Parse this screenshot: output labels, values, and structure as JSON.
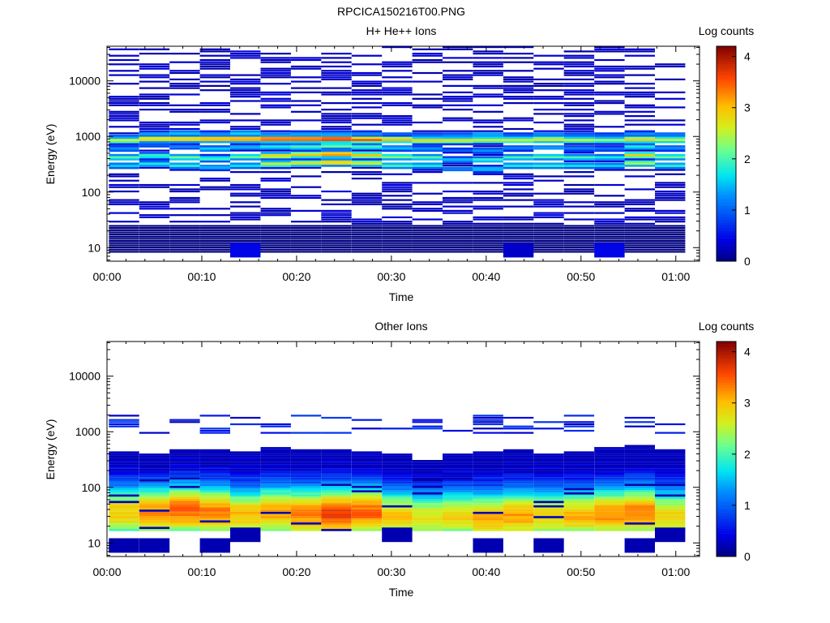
{
  "figure_title": "RPCICA150216T00.PNG",
  "chart_data": [
    {
      "type": "heatmap",
      "title": "H+ He++ Ions",
      "xlabel": "Time",
      "ylabel": "Energy (eV)",
      "colorbar_label": "Log counts",
      "colorbar_ticks": [
        "0",
        "1",
        "2",
        "3",
        "4"
      ],
      "colorbar_range": [
        0,
        4.2
      ],
      "xlim_minutes": [
        0,
        62.5
      ],
      "x_tick_labels": [
        "00:00",
        "00:10",
        "00:20",
        "00:30",
        "00:40",
        "00:50",
        "01:00"
      ],
      "x_tick_minutes": [
        0,
        10,
        20,
        30,
        40,
        50,
        60
      ],
      "ylim_eV": [
        5.7,
        42000
      ],
      "y_scale": "log",
      "y_tick_labels": [
        "10",
        "100",
        "1000",
        "10000"
      ],
      "y_tick_values": [
        10,
        100,
        1000,
        10000
      ],
      "time_bins_minutes": [
        1.8,
        5.0,
        8.2,
        11.4,
        14.6,
        17.8,
        21.0,
        24.2,
        27.4,
        30.6,
        33.8,
        37.0,
        40.2,
        43.4,
        46.6,
        49.8,
        53.0,
        56.2,
        59.4
      ],
      "column_profiles": [
        {
          "bands": [
            [
              300,
              1.6
            ],
            [
              420,
              2.1
            ],
            [
              600,
              1.3
            ],
            [
              850,
              2.6
            ],
            [
              1000,
              1.1
            ]
          ]
        },
        {
          "bands": [
            [
              320,
              1.8
            ],
            [
              450,
              2.0
            ],
            [
              700,
              1.0
            ],
            [
              900,
              3.0
            ],
            [
              1100,
              1.4
            ]
          ]
        },
        {
          "bands": [
            [
              300,
              1.9
            ],
            [
              420,
              2.2
            ],
            [
              650,
              1.2
            ],
            [
              900,
              3.1
            ],
            [
              1150,
              1.5
            ]
          ]
        },
        {
          "bands": [
            [
              280,
              1.5
            ],
            [
              400,
              2.0
            ],
            [
              600,
              1.6
            ],
            [
              900,
              3.3
            ],
            [
              1100,
              1.3
            ]
          ]
        },
        {
          "bands": [
            [
              300,
              1.7
            ],
            [
              430,
              2.2
            ],
            [
              640,
              1.5
            ],
            [
              900,
              3.4
            ],
            [
              1150,
              1.6
            ]
          ]
        },
        {
          "bands": [
            [
              320,
              2.6
            ],
            [
              450,
              2.9
            ],
            [
              650,
              1.8
            ],
            [
              900,
              3.7
            ],
            [
              1100,
              1.2
            ]
          ]
        },
        {
          "bands": [
            [
              330,
              2.8
            ],
            [
              470,
              3.0
            ],
            [
              650,
              2.0
            ],
            [
              900,
              3.7
            ],
            [
              1100,
              1.4
            ]
          ]
        },
        {
          "bands": [
            [
              340,
              3.1
            ],
            [
              480,
              3.4
            ],
            [
              680,
              2.2
            ],
            [
              900,
              3.9
            ],
            [
              1120,
              1.3
            ]
          ]
        },
        {
          "bands": [
            [
              330,
              2.7
            ],
            [
              460,
              3.0
            ],
            [
              650,
              2.0
            ],
            [
              880,
              3.6
            ],
            [
              1100,
              1.3
            ]
          ]
        },
        {
          "bands": [
            [
              300,
              2.0
            ],
            [
              430,
              2.3
            ],
            [
              620,
              1.5
            ],
            [
              880,
              3.1
            ],
            [
              1100,
              1.0
            ]
          ]
        },
        {
          "bands": [
            [
              300,
              1.8
            ],
            [
              420,
              2.1
            ],
            [
              600,
              1.3
            ],
            [
              850,
              2.9
            ],
            [
              1050,
              1.1
            ]
          ]
        },
        {
          "bands": [
            [
              260,
              1.2
            ],
            [
              380,
              1.5
            ],
            [
              560,
              1.0
            ],
            [
              850,
              2.8
            ],
            [
              1050,
              1.2
            ]
          ]
        },
        {
          "bands": [
            [
              260,
              1.6
            ],
            [
              380,
              1.9
            ],
            [
              560,
              1.3
            ],
            [
              860,
              2.7
            ],
            [
              1080,
              1.5
            ]
          ]
        },
        {
          "bands": [
            [
              300,
              1.8
            ],
            [
              420,
              2.0
            ],
            [
              620,
              1.2
            ],
            [
              860,
              2.7
            ],
            [
              1050,
              1.0
            ]
          ]
        },
        {
          "bands": [
            [
              300,
              1.9
            ],
            [
              430,
              2.1
            ],
            [
              630,
              1.4
            ],
            [
              880,
              2.8
            ],
            [
              1080,
              1.3
            ]
          ]
        },
        {
          "bands": [
            [
              300,
              1.7
            ],
            [
              420,
              2.0
            ],
            [
              610,
              1.2
            ],
            [
              860,
              2.6
            ],
            [
              1060,
              1.1
            ]
          ]
        },
        {
          "bands": [
            [
              300,
              1.6
            ],
            [
              420,
              1.8
            ],
            [
              600,
              1.1
            ],
            [
              860,
              2.4
            ],
            [
              1050,
              1.0
            ]
          ]
        },
        {
          "bands": [
            [
              330,
              2.5
            ],
            [
              460,
              2.9
            ],
            [
              650,
              1.8
            ],
            [
              880,
              3.0
            ],
            [
              1100,
              1.3
            ]
          ]
        },
        {
          "bands": [
            [
              300,
              1.9
            ],
            [
              430,
              2.2
            ],
            [
              620,
              1.3
            ],
            [
              870,
              2.6
            ],
            [
              1080,
              1.2
            ]
          ]
        }
      ],
      "sparse_level": 0.15,
      "sparse_range_eV": [
        25,
        42000
      ],
      "low_energy_patches": [
        {
          "time_bin": 4,
          "energy_eV": 9,
          "level": 0.45
        },
        {
          "time_bin": 13,
          "energy_eV": 9,
          "level": 0.3
        },
        {
          "time_bin": 16,
          "energy_eV": 9,
          "level": 0.45
        }
      ]
    },
    {
      "type": "heatmap",
      "title": "Other Ions",
      "xlabel": "Time",
      "ylabel": "Energy (eV)",
      "colorbar_label": "Log counts",
      "colorbar_ticks": [
        "0",
        "1",
        "2",
        "3",
        "4"
      ],
      "colorbar_range": [
        0,
        4.2
      ],
      "xlim_minutes": [
        0,
        62.5
      ],
      "x_tick_labels": [
        "00:00",
        "00:10",
        "00:20",
        "00:30",
        "00:40",
        "00:50",
        "01:00"
      ],
      "x_tick_minutes": [
        0,
        10,
        20,
        30,
        40,
        50,
        60
      ],
      "ylim_eV": [
        5.7,
        42000
      ],
      "y_scale": "log",
      "y_tick_labels": [
        "10",
        "100",
        "1000",
        "10000"
      ],
      "y_tick_values": [
        10,
        100,
        1000,
        10000
      ],
      "time_bins_minutes": [
        1.8,
        5.0,
        8.2,
        11.4,
        14.6,
        17.8,
        21.0,
        24.2,
        27.4,
        30.6,
        33.8,
        37.0,
        40.2,
        43.4,
        46.6,
        49.8,
        53.0,
        56.2,
        59.4
      ],
      "column_profiles": [
        {
          "peak_eV": 35,
          "peak": 2.8,
          "top_eV": 450
        },
        {
          "peak_eV": 35,
          "peak": 3.1,
          "top_eV": 420
        },
        {
          "peak_eV": 38,
          "peak": 3.3,
          "top_eV": 480
        },
        {
          "peak_eV": 35,
          "peak": 3.2,
          "top_eV": 500
        },
        {
          "peak_eV": 32,
          "peak": 2.9,
          "top_eV": 450
        },
        {
          "peak_eV": 35,
          "peak": 3.0,
          "top_eV": 520
        },
        {
          "peak_eV": 33,
          "peak": 3.1,
          "top_eV": 500
        },
        {
          "peak_eV": 33,
          "peak": 3.5,
          "top_eV": 480
        },
        {
          "peak_eV": 35,
          "peak": 3.3,
          "top_eV": 460
        },
        {
          "peak_eV": 30,
          "peak": 2.8,
          "top_eV": 400
        },
        {
          "peak_eV": 28,
          "peak": 2.6,
          "top_eV": 300
        },
        {
          "peak_eV": 30,
          "peak": 2.7,
          "top_eV": 400
        },
        {
          "peak_eV": 28,
          "peak": 2.9,
          "top_eV": 450
        },
        {
          "peak_eV": 30,
          "peak": 3.0,
          "top_eV": 480
        },
        {
          "peak_eV": 30,
          "peak": 2.8,
          "top_eV": 420
        },
        {
          "peak_eV": 30,
          "peak": 2.9,
          "top_eV": 460
        },
        {
          "peak_eV": 32,
          "peak": 3.1,
          "top_eV": 520
        },
        {
          "peak_eV": 35,
          "peak": 3.2,
          "top_eV": 560
        },
        {
          "peak_eV": 30,
          "peak": 2.7,
          "top_eV": 480
        }
      ],
      "high_band_eV": [
        900,
        2100
      ],
      "high_band_level": 0.6,
      "bottom_row_eV": [
        17,
        20
      ],
      "low_energy_patches": [
        {
          "time_bin": 0,
          "energy_eV": 9,
          "level": 0.2
        },
        {
          "time_bin": 1,
          "energy_eV": 9,
          "level": 0.2
        },
        {
          "time_bin": 3,
          "energy_eV": 9,
          "level": 0.2
        },
        {
          "time_bin": 4,
          "energy_eV": 14,
          "level": 0.2
        },
        {
          "time_bin": 9,
          "energy_eV": 14,
          "level": 0.2
        },
        {
          "time_bin": 12,
          "energy_eV": 9,
          "level": 0.2
        },
        {
          "time_bin": 14,
          "energy_eV": 9,
          "level": 0.2
        },
        {
          "time_bin": 17,
          "energy_eV": 9,
          "level": 0.2
        },
        {
          "time_bin": 18,
          "energy_eV": 14,
          "level": 0.2
        }
      ]
    }
  ]
}
